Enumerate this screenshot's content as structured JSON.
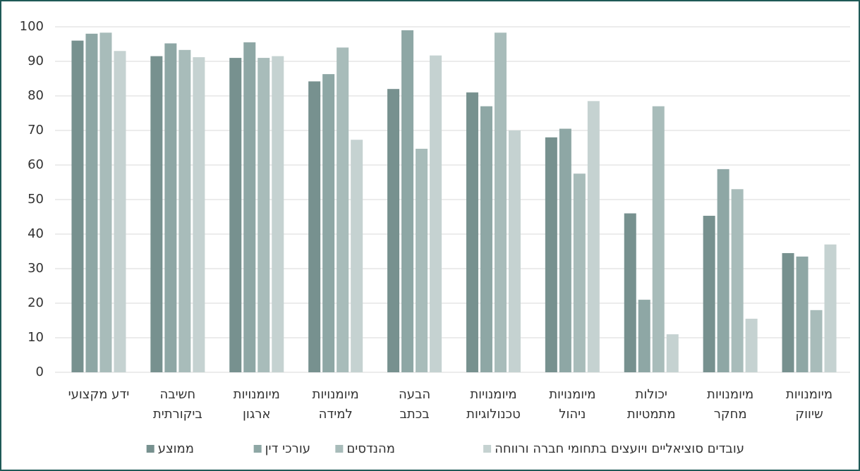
{
  "chart_data": {
    "type": "bar",
    "categories": [
      [
        "ידע מקצועי"
      ],
      [
        "חשיבה",
        "ביקורתית"
      ],
      [
        "מיומנויות",
        "ארגון"
      ],
      [
        "מיומנויות",
        "למידה"
      ],
      [
        "הבעה",
        "בכתב"
      ],
      [
        "מיומנויות",
        "טכנולוגיות"
      ],
      [
        "מיומנויות",
        "ניהול"
      ],
      [
        "יכולות",
        "מתמטיות"
      ],
      [
        "מיומנויות",
        "מחקר"
      ],
      [
        "מיומנויות",
        "שיווק"
      ]
    ],
    "series": [
      {
        "name": "ממוצע",
        "color": "#77918f",
        "values": [
          96,
          91.5,
          91,
          84.2,
          82,
          81,
          68,
          46,
          45.3,
          34.5
        ]
      },
      {
        "name": "עורכי דין",
        "color": "#8ea7a5",
        "values": [
          98,
          95.2,
          95.5,
          86.3,
          99,
          77,
          70.5,
          21,
          58.8,
          33.5
        ]
      },
      {
        "name": "מהנדסים",
        "color": "#a8bcba",
        "values": [
          98.3,
          93.3,
          91,
          94,
          64.7,
          98.3,
          57.5,
          77,
          53,
          18
        ]
      },
      {
        "name": "עובדים סוציאליים ויועצים בתחומי חברה ורווחה",
        "color": "#c5d2d1",
        "values": [
          93,
          91.2,
          91.5,
          67.3,
          91.7,
          70,
          78.5,
          11,
          15.5,
          37
        ]
      }
    ],
    "ylim": [
      0,
      100
    ],
    "yticks": [
      0,
      10,
      20,
      30,
      40,
      50,
      60,
      70,
      80,
      90,
      100
    ],
    "grid": true
  }
}
